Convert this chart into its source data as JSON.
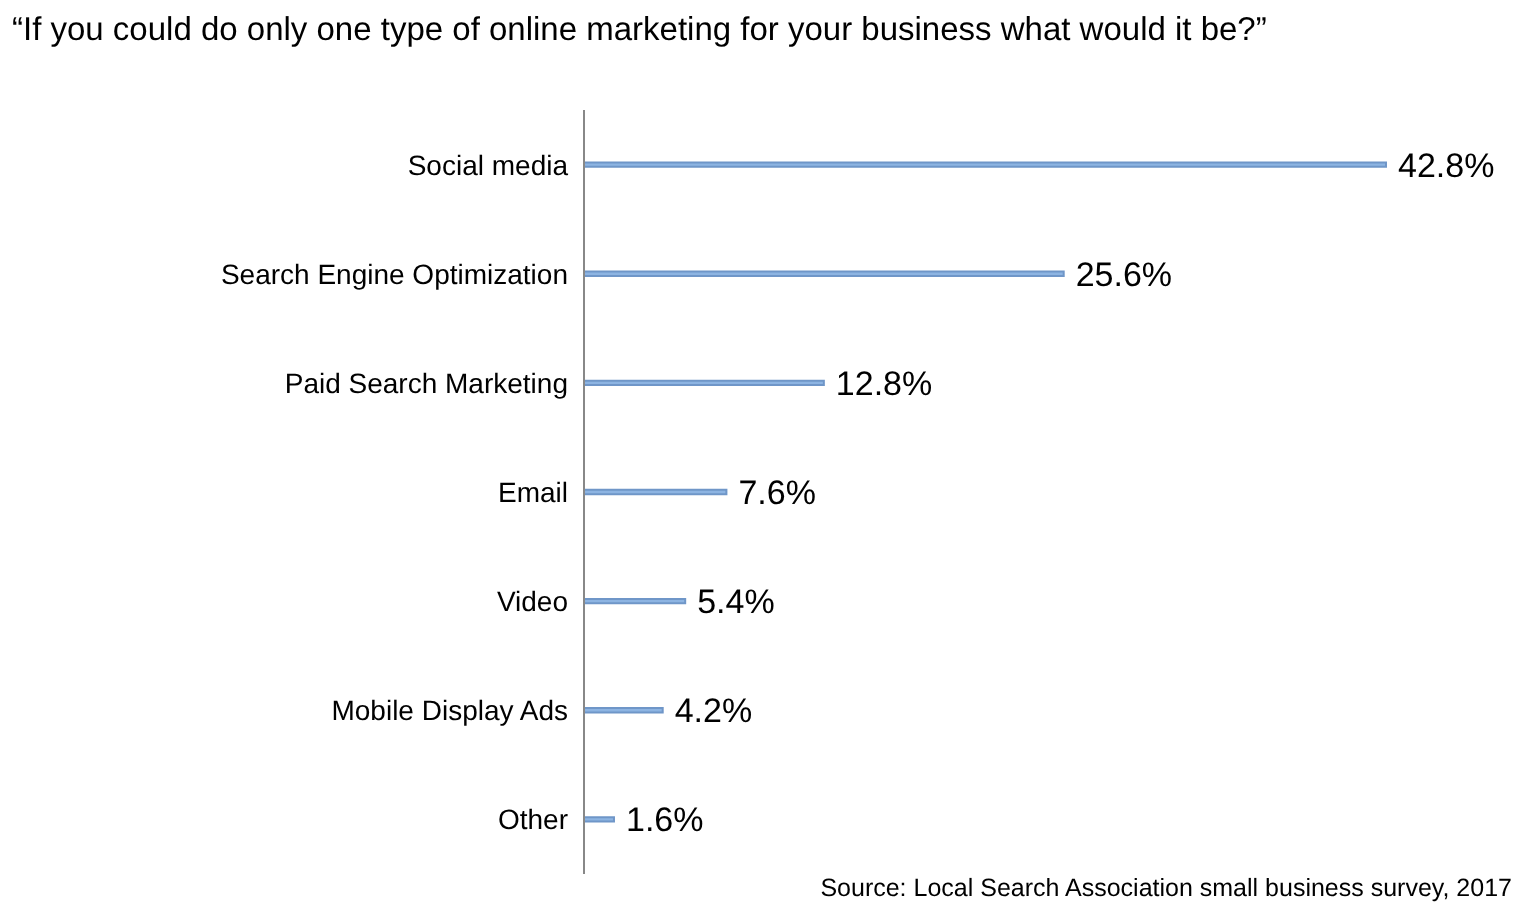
{
  "chart_data": {
    "type": "bar",
    "orientation": "horizontal",
    "title": "“If you could do only one type of online marketing for your business what would it be?”",
    "categories": [
      "Social media",
      "Search Engine Optimization",
      "Paid Search Marketing",
      "Email",
      "Video",
      "Mobile Display Ads",
      "Other"
    ],
    "values": [
      42.8,
      25.6,
      12.8,
      7.6,
      5.4,
      4.2,
      1.6
    ],
    "value_labels": [
      "42.8%",
      "25.6%",
      "12.8%",
      "7.6%",
      "5.4%",
      "4.2%",
      "1.6%"
    ],
    "color": "#8db4e2",
    "annotations": [
      "Source: Local Search Association small business survey, 2017"
    ]
  }
}
